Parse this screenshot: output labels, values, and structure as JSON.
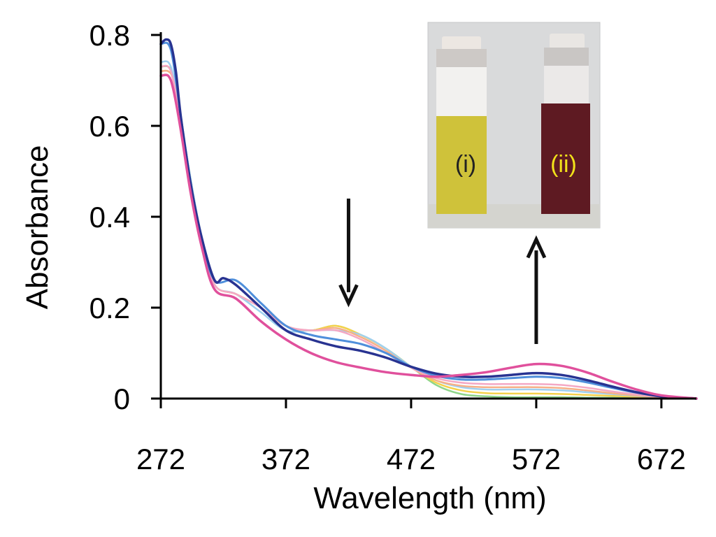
{
  "chart_data": {
    "type": "line",
    "title": "",
    "xlabel": "Wavelength (nm)",
    "ylabel": "Absorbance",
    "xlim": [
      272,
      700
    ],
    "ylim": [
      0,
      0.8
    ],
    "x_ticks": [
      272,
      372,
      472,
      572,
      672
    ],
    "x_tick_labels": [
      "272",
      "372",
      "472",
      "572",
      "672"
    ],
    "y_ticks": [
      0,
      0.2,
      0.4,
      0.6,
      0.8
    ],
    "y_tick_labels": [
      "0",
      "0.2",
      "0.4",
      "0.6",
      "0.8"
    ],
    "grid": false,
    "legend": "none",
    "colors": {
      "axis": "#000000",
      "arrow": "#111111",
      "inset_bg": "#d9dadb",
      "inset_frame": "#c6c7c8",
      "vial_i_liquid": "#cfc23a",
      "vial_ii_liquid": "#5e1a22",
      "label_i": "#222222",
      "label_ii": "#f2e21a"
    },
    "series": [
      {
        "name": "series-1",
        "color": "#8fd68a",
        "width": 2.5,
        "x": [
          272,
          278,
          282,
          288,
          296,
          305,
          315,
          332,
          352,
          372,
          392,
          412,
          432,
          452,
          472,
          492,
          512,
          532,
          552,
          572,
          592,
          612,
          632,
          652,
          672,
          700
        ],
        "y": [
          0.73,
          0.73,
          0.71,
          0.62,
          0.48,
          0.35,
          0.25,
          0.23,
          0.2,
          0.16,
          0.15,
          0.16,
          0.14,
          0.11,
          0.07,
          0.03,
          0.01,
          0.005,
          0.003,
          0.003,
          0.003,
          0.002,
          0.002,
          0.001,
          0.001,
          0
        ]
      },
      {
        "name": "series-2",
        "color": "#f5d14a",
        "width": 2.5,
        "x": [
          272,
          278,
          282,
          288,
          296,
          305,
          315,
          332,
          352,
          372,
          392,
          412,
          432,
          452,
          472,
          492,
          512,
          532,
          552,
          572,
          592,
          612,
          632,
          652,
          672,
          700
        ],
        "y": [
          0.72,
          0.72,
          0.7,
          0.61,
          0.47,
          0.35,
          0.25,
          0.23,
          0.2,
          0.16,
          0.15,
          0.16,
          0.14,
          0.11,
          0.07,
          0.035,
          0.018,
          0.012,
          0.011,
          0.011,
          0.01,
          0.008,
          0.006,
          0.004,
          0.002,
          0
        ]
      },
      {
        "name": "series-3",
        "color": "#9fd0ef",
        "width": 2.5,
        "x": [
          272,
          278,
          282,
          288,
          296,
          305,
          315,
          332,
          352,
          372,
          392,
          412,
          432,
          452,
          472,
          492,
          512,
          532,
          552,
          572,
          592,
          612,
          632,
          652,
          672,
          700
        ],
        "y": [
          0.74,
          0.74,
          0.71,
          0.62,
          0.48,
          0.35,
          0.25,
          0.23,
          0.19,
          0.15,
          0.15,
          0.15,
          0.14,
          0.11,
          0.07,
          0.04,
          0.025,
          0.02,
          0.02,
          0.02,
          0.018,
          0.014,
          0.01,
          0.006,
          0.003,
          0
        ]
      },
      {
        "name": "series-4",
        "color": "#f6b089",
        "width": 2.5,
        "x": [
          272,
          278,
          282,
          288,
          296,
          305,
          315,
          332,
          352,
          372,
          392,
          412,
          432,
          452,
          472,
          492,
          512,
          532,
          552,
          572,
          592,
          612,
          632,
          652,
          672,
          700
        ],
        "y": [
          0.72,
          0.72,
          0.7,
          0.61,
          0.47,
          0.35,
          0.25,
          0.23,
          0.2,
          0.16,
          0.15,
          0.155,
          0.135,
          0.105,
          0.068,
          0.04,
          0.028,
          0.025,
          0.025,
          0.025,
          0.023,
          0.018,
          0.012,
          0.007,
          0.003,
          0
        ]
      },
      {
        "name": "series-5",
        "color": "#f4a8c4",
        "width": 2.5,
        "x": [
          272,
          278,
          282,
          288,
          296,
          305,
          315,
          332,
          352,
          372,
          392,
          412,
          432,
          452,
          472,
          492,
          512,
          532,
          552,
          572,
          592,
          612,
          632,
          652,
          672,
          700
        ],
        "y": [
          0.73,
          0.73,
          0.7,
          0.61,
          0.47,
          0.35,
          0.25,
          0.23,
          0.2,
          0.16,
          0.15,
          0.15,
          0.13,
          0.1,
          0.068,
          0.045,
          0.035,
          0.032,
          0.032,
          0.032,
          0.03,
          0.024,
          0.016,
          0.009,
          0.004,
          0
        ]
      },
      {
        "name": "series-6",
        "color": "#4f8fdb",
        "width": 3,
        "x": [
          272,
          278,
          282,
          288,
          296,
          305,
          315,
          332,
          352,
          372,
          392,
          412,
          432,
          452,
          472,
          492,
          512,
          532,
          552,
          572,
          592,
          612,
          632,
          652,
          672,
          700
        ],
        "y": [
          0.78,
          0.78,
          0.74,
          0.62,
          0.47,
          0.35,
          0.26,
          0.26,
          0.21,
          0.16,
          0.14,
          0.13,
          0.12,
          0.1,
          0.07,
          0.05,
          0.042,
          0.042,
          0.045,
          0.048,
          0.045,
          0.036,
          0.024,
          0.013,
          0.005,
          0
        ]
      },
      {
        "name": "series-7",
        "color": "#283391",
        "width": 3.5,
        "x": [
          272,
          276,
          280,
          284,
          288,
          296,
          305,
          315,
          322,
          332,
          352,
          372,
          392,
          412,
          432,
          452,
          472,
          492,
          512,
          532,
          552,
          572,
          592,
          612,
          632,
          652,
          672,
          700
        ],
        "y": [
          0.78,
          0.79,
          0.78,
          0.72,
          0.62,
          0.47,
          0.35,
          0.26,
          0.265,
          0.25,
          0.2,
          0.15,
          0.13,
          0.115,
          0.105,
          0.09,
          0.07,
          0.055,
          0.048,
          0.048,
          0.052,
          0.056,
          0.052,
          0.041,
          0.027,
          0.014,
          0.005,
          0
        ]
      },
      {
        "name": "series-8",
        "color": "#e0509c",
        "width": 3.5,
        "x": [
          272,
          278,
          282,
          288,
          296,
          305,
          315,
          332,
          352,
          372,
          392,
          412,
          432,
          452,
          472,
          492,
          512,
          532,
          552,
          572,
          592,
          612,
          632,
          652,
          672,
          700
        ],
        "y": [
          0.71,
          0.71,
          0.68,
          0.59,
          0.45,
          0.33,
          0.24,
          0.22,
          0.17,
          0.13,
          0.1,
          0.08,
          0.068,
          0.058,
          0.052,
          0.048,
          0.052,
          0.058,
          0.068,
          0.076,
          0.072,
          0.058,
          0.038,
          0.02,
          0.007,
          0
        ]
      }
    ],
    "annotations": [
      {
        "type": "arrow",
        "direction": "down",
        "x": 422,
        "y_from": 0.44,
        "y_to": 0.21,
        "meaning": "absorbance decreasing"
      },
      {
        "type": "arrow",
        "direction": "up",
        "x": 572,
        "y_from": 0.12,
        "y_to": 0.35,
        "meaning": "absorbance increasing"
      }
    ],
    "inset": {
      "description": "photo of two vials",
      "labels": [
        "(i)",
        "(ii)"
      ]
    }
  }
}
